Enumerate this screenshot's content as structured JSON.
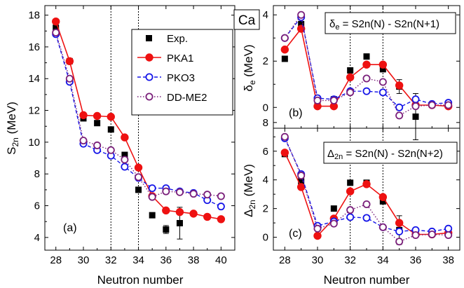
{
  "figure": {
    "nucleus_label": "Ca",
    "xlabel": "Neutron number"
  },
  "legend": {
    "entries": [
      {
        "label": "Exp.",
        "color": "#000000",
        "marker": "filled-square",
        "line": "none"
      },
      {
        "label": "PKA1",
        "color": "#ee1111",
        "marker": "filled-circle",
        "line": "solid"
      },
      {
        "label": "PKO3",
        "color": "#1515e8",
        "marker": "open-circle",
        "line": "dash"
      },
      {
        "label": "DD-ME2",
        "color": "#7a1f7a",
        "marker": "open-circle",
        "line": "dot"
      }
    ]
  },
  "chart_data": [
    {
      "type": "line",
      "panel_label": "(a)",
      "xlabel": "Neutron number",
      "ylabel_main": "S",
      "ylabel_sub": "2n",
      "ylabel_unit": " (MeV)",
      "xlim": [
        27.2,
        41
      ],
      "ylim": [
        3.2,
        18.6
      ],
      "xticks": [
        28,
        30,
        32,
        34,
        36,
        38,
        40
      ],
      "yticks": [
        4,
        6,
        8,
        10,
        12,
        14,
        16,
        18
      ],
      "vlines": [
        32,
        34
      ],
      "series": [
        {
          "name": "Exp.",
          "color": "#000000",
          "marker": "square",
          "line": "none",
          "x": [
            28,
            29,
            30,
            31,
            32,
            33,
            34,
            35,
            36,
            37
          ],
          "y": [
            17.2,
            15.1,
            11.5,
            11.2,
            10.8,
            9.2,
            7.0,
            5.4,
            4.5,
            4.9
          ],
          "err": [
            0,
            0,
            0,
            0,
            0,
            0,
            0,
            0,
            0.25,
            1.0
          ]
        },
        {
          "name": "PKA1",
          "color": "#ee1111",
          "marker": "filled-circle",
          "line": "solid",
          "x": [
            28,
            29,
            30,
            31,
            32,
            33,
            34,
            35,
            36,
            37,
            38,
            39,
            40
          ],
          "y": [
            17.6,
            15.1,
            11.7,
            11.65,
            11.6,
            10.3,
            8.4,
            6.6,
            5.7,
            5.6,
            5.5,
            5.3,
            5.15
          ]
        },
        {
          "name": "PKO3",
          "color": "#1515e8",
          "marker": "open-circle",
          "line": "dash",
          "x": [
            28,
            29,
            30,
            31,
            32,
            33,
            34,
            35,
            36,
            37,
            38,
            39,
            40
          ],
          "y": [
            16.8,
            13.8,
            9.9,
            9.5,
            9.15,
            8.45,
            7.75,
            7.1,
            7.1,
            6.9,
            6.8,
            6.35,
            5.95
          ]
        },
        {
          "name": "DD-ME2",
          "color": "#7a1f7a",
          "marker": "open-circle",
          "line": "dot",
          "x": [
            28,
            29,
            30,
            31,
            32,
            33,
            34,
            35,
            36,
            37,
            38,
            39,
            40
          ],
          "y": [
            16.9,
            14.0,
            10.1,
            9.8,
            9.5,
            8.9,
            7.8,
            6.55,
            6.9,
            6.85,
            6.75,
            6.7,
            6.6
          ]
        }
      ]
    },
    {
      "type": "line",
      "panel_label": "(b)",
      "annotation_lhs_main": "δ",
      "annotation_lhs_sub": "e",
      "annotation_rhs": " = S2n(N) - S2n(N+1)",
      "ylabel_main": "δ",
      "ylabel_sub": "e",
      "ylabel_unit": " (MeV)",
      "xlim": [
        27.3,
        38.7
      ],
      "ylim": [
        -0.9,
        4.4
      ],
      "xticks": [
        28,
        30,
        32,
        34,
        36,
        38
      ],
      "yticks": [
        0,
        2,
        4
      ],
      "vlines": [
        32,
        34
      ],
      "series": [
        {
          "name": "Exp.",
          "color": "#000000",
          "marker": "square",
          "line": "none",
          "x": [
            28,
            29,
            30,
            31,
            32,
            33,
            34,
            35,
            36
          ],
          "y": [
            2.1,
            3.6,
            0.3,
            0.35,
            1.6,
            2.2,
            1.65,
            0.9,
            -0.4
          ],
          "err": [
            0,
            0,
            0,
            0,
            0,
            0,
            0,
            0.3,
            1.0
          ]
        },
        {
          "name": "PKA1",
          "color": "#ee1111",
          "marker": "filled-circle",
          "line": "solid",
          "x": [
            28,
            29,
            30,
            31,
            32,
            33,
            34,
            35,
            36,
            37,
            38
          ],
          "y": [
            2.5,
            3.4,
            0.05,
            0.05,
            1.3,
            1.85,
            1.85,
            0.95,
            0.1,
            0.1,
            0.05
          ]
        },
        {
          "name": "PKO3",
          "color": "#1515e8",
          "marker": "open-circle",
          "line": "dash",
          "x": [
            28,
            29,
            30,
            31,
            32,
            33,
            34,
            35,
            36,
            37,
            38
          ],
          "y": [
            3.0,
            3.9,
            0.4,
            0.35,
            0.7,
            0.7,
            0.65,
            0.0,
            0.35,
            0.15,
            0.2
          ]
        },
        {
          "name": "DD-ME2",
          "color": "#7a1f7a",
          "marker": "open-circle",
          "line": "dot",
          "x": [
            28,
            29,
            30,
            31,
            32,
            33,
            34,
            35,
            36,
            37,
            38
          ],
          "y": [
            3.0,
            4.0,
            0.3,
            0.3,
            0.65,
            1.25,
            1.1,
            -0.35,
            0.05,
            0.1,
            0.1
          ]
        }
      ]
    },
    {
      "type": "line",
      "panel_label": "(c)",
      "xlabel": "Neutron number",
      "annotation_lhs_main": "Δ",
      "annotation_lhs_sub": "2n",
      "annotation_rhs": " = S2n(N) - S2n(N+2)",
      "ylabel_main": "Δ",
      "ylabel_sub": "2n",
      "ylabel_unit": " (MeV)",
      "xlim": [
        27.3,
        38.7
      ],
      "ylim": [
        -0.9,
        7.6
      ],
      "xticks": [
        28,
        30,
        32,
        34,
        36,
        38
      ],
      "yticks": [
        0,
        2,
        4,
        6,
        8
      ],
      "vlines": [
        32,
        34
      ],
      "series": [
        {
          "name": "Exp.",
          "color": "#000000",
          "marker": "square",
          "line": "none",
          "x": [
            28,
            29,
            30,
            31,
            32,
            33,
            34,
            35
          ],
          "y": [
            5.8,
            3.9,
            0.7,
            2.0,
            3.8,
            3.8,
            2.5,
            0.5
          ],
          "err": [
            0,
            0,
            0,
            0,
            0,
            0,
            0,
            1.0
          ]
        },
        {
          "name": "PKA1",
          "color": "#ee1111",
          "marker": "filled-circle",
          "line": "solid",
          "x": [
            28,
            29,
            30,
            31,
            32,
            33,
            34,
            35,
            36,
            37,
            38
          ],
          "y": [
            5.9,
            3.5,
            0.1,
            1.3,
            3.2,
            3.7,
            2.8,
            1.0,
            0.2,
            0.2,
            0.3
          ]
        },
        {
          "name": "PKO3",
          "color": "#1515e8",
          "marker": "open-circle",
          "line": "dash",
          "x": [
            28,
            29,
            30,
            31,
            32,
            33,
            34,
            35,
            36,
            37,
            38
          ],
          "y": [
            6.9,
            4.4,
            0.8,
            1.1,
            1.4,
            1.35,
            0.7,
            0.4,
            0.5,
            0.4,
            0.6
          ]
        },
        {
          "name": "DD-ME2",
          "color": "#7a1f7a",
          "marker": "open-circle",
          "line": "dot",
          "x": [
            28,
            29,
            30,
            31,
            32,
            33,
            34,
            35,
            36,
            37,
            38
          ],
          "y": [
            7.0,
            4.3,
            0.6,
            0.95,
            1.9,
            2.3,
            0.7,
            -0.3,
            0.15,
            0.2,
            0.15
          ]
        }
      ]
    }
  ]
}
